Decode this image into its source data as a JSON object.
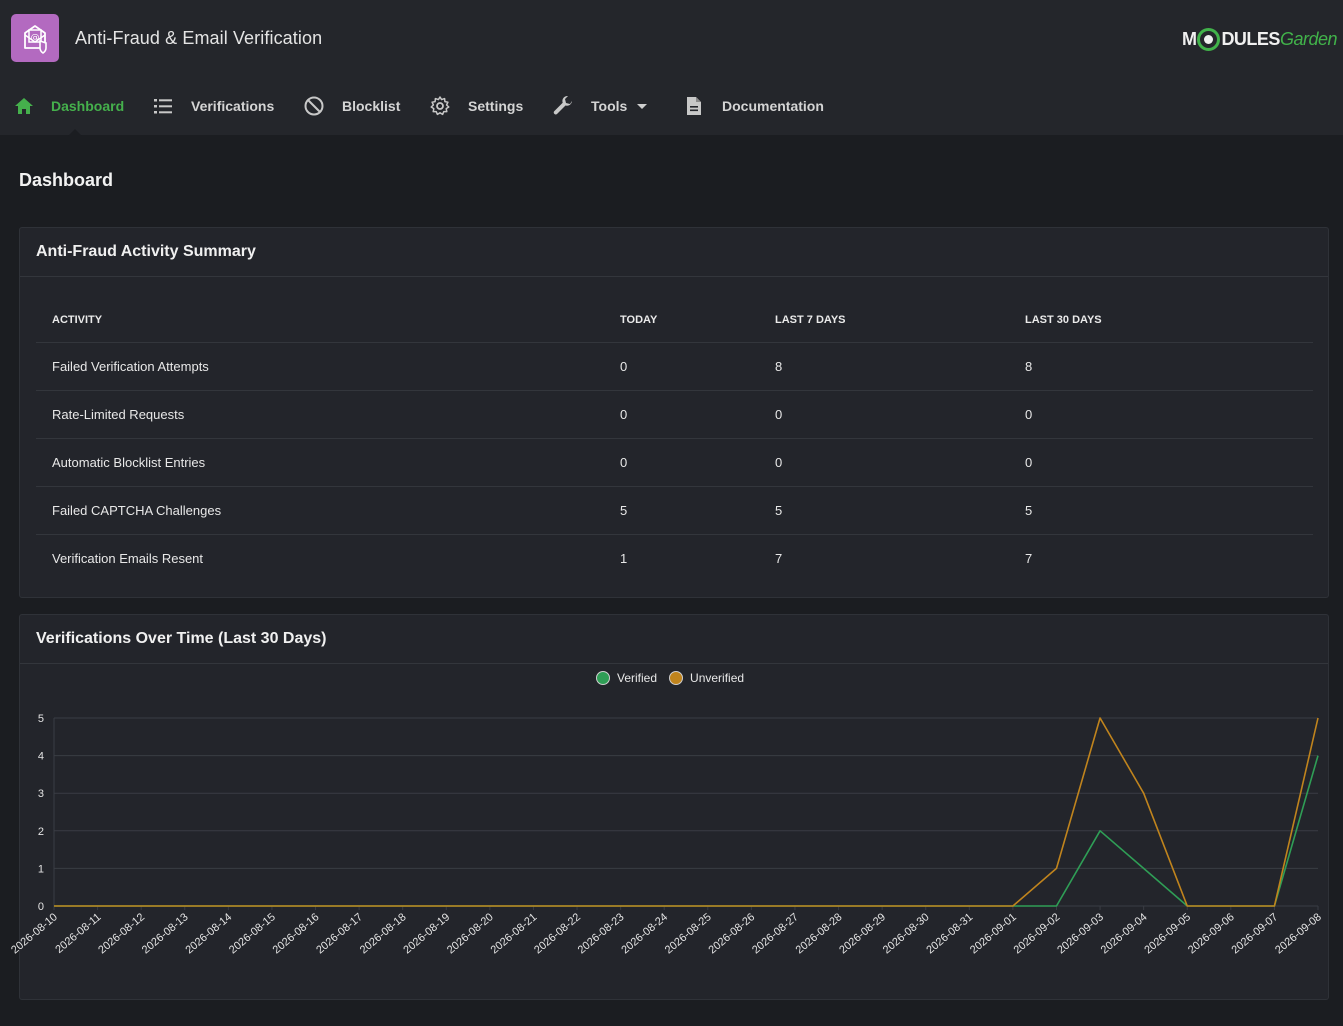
{
  "app": {
    "title": "Anti-Fraud & Email Verification",
    "brand_part1": "M",
    "brand_part2": "DULES",
    "brand_part3": "Garden"
  },
  "nav": [
    {
      "label": "Dashboard",
      "icon": "home-icon",
      "active": true
    },
    {
      "label": "Verifications",
      "icon": "list-icon"
    },
    {
      "label": "Blocklist",
      "icon": "block-icon"
    },
    {
      "label": "Settings",
      "icon": "gear-icon"
    },
    {
      "label": "Tools",
      "icon": "wrench-icon",
      "dropdown": true
    },
    {
      "label": "Documentation",
      "icon": "document-icon"
    }
  ],
  "page": {
    "title": "Dashboard"
  },
  "summary": {
    "title": "Anti-Fraud Activity Summary",
    "columns": [
      "ACTIVITY",
      "TODAY",
      "LAST 7 DAYS",
      "LAST 30 DAYS"
    ],
    "rows": [
      [
        "Failed Verification Attempts",
        "0",
        "8",
        "8"
      ],
      [
        "Rate-Limited Requests",
        "0",
        "0",
        "0"
      ],
      [
        "Automatic Blocklist Entries",
        "0",
        "0",
        "0"
      ],
      [
        "Failed CAPTCHA Challenges",
        "5",
        "5",
        "5"
      ],
      [
        "Verification Emails Resent",
        "1",
        "7",
        "7"
      ]
    ]
  },
  "chart_section": {
    "title": "Verifications Over Time (Last 30 Days)"
  },
  "colors": {
    "accent": "#45b04c",
    "verified": "#2f9e56",
    "unverified": "#c0841d",
    "grid": "#3a3d44"
  },
  "chart_data": {
    "type": "line",
    "title": "",
    "xlabel": "",
    "ylabel": "",
    "ylim": [
      0,
      5
    ],
    "yticks": [
      0,
      1,
      2,
      3,
      4,
      5
    ],
    "legend": "top-center",
    "grid": true,
    "x": [
      "2026-08-10",
      "2026-08-11",
      "2026-08-12",
      "2026-08-13",
      "2026-08-14",
      "2026-08-15",
      "2026-08-16",
      "2026-08-17",
      "2026-08-18",
      "2026-08-19",
      "2026-08-20",
      "2026-08-21",
      "2026-08-22",
      "2026-08-23",
      "2026-08-24",
      "2026-08-25",
      "2026-08-26",
      "2026-08-27",
      "2026-08-28",
      "2026-08-29",
      "2026-08-30",
      "2026-08-31",
      "2026-09-01",
      "2026-09-02",
      "2026-09-03",
      "2026-09-04",
      "2026-09-05",
      "2026-09-06",
      "2026-09-07",
      "2026-09-08"
    ],
    "series": [
      {
        "name": "Verified",
        "color": "#2f9e56",
        "values": [
          0,
          0,
          0,
          0,
          0,
          0,
          0,
          0,
          0,
          0,
          0,
          0,
          0,
          0,
          0,
          0,
          0,
          0,
          0,
          0,
          0,
          0,
          0,
          0,
          2,
          1,
          0,
          0,
          0,
          4
        ]
      },
      {
        "name": "Unverified",
        "color": "#c0841d",
        "values": [
          0,
          0,
          0,
          0,
          0,
          0,
          0,
          0,
          0,
          0,
          0,
          0,
          0,
          0,
          0,
          0,
          0,
          0,
          0,
          0,
          0,
          0,
          0,
          1,
          5,
          3,
          0,
          0,
          0,
          5
        ]
      }
    ]
  }
}
